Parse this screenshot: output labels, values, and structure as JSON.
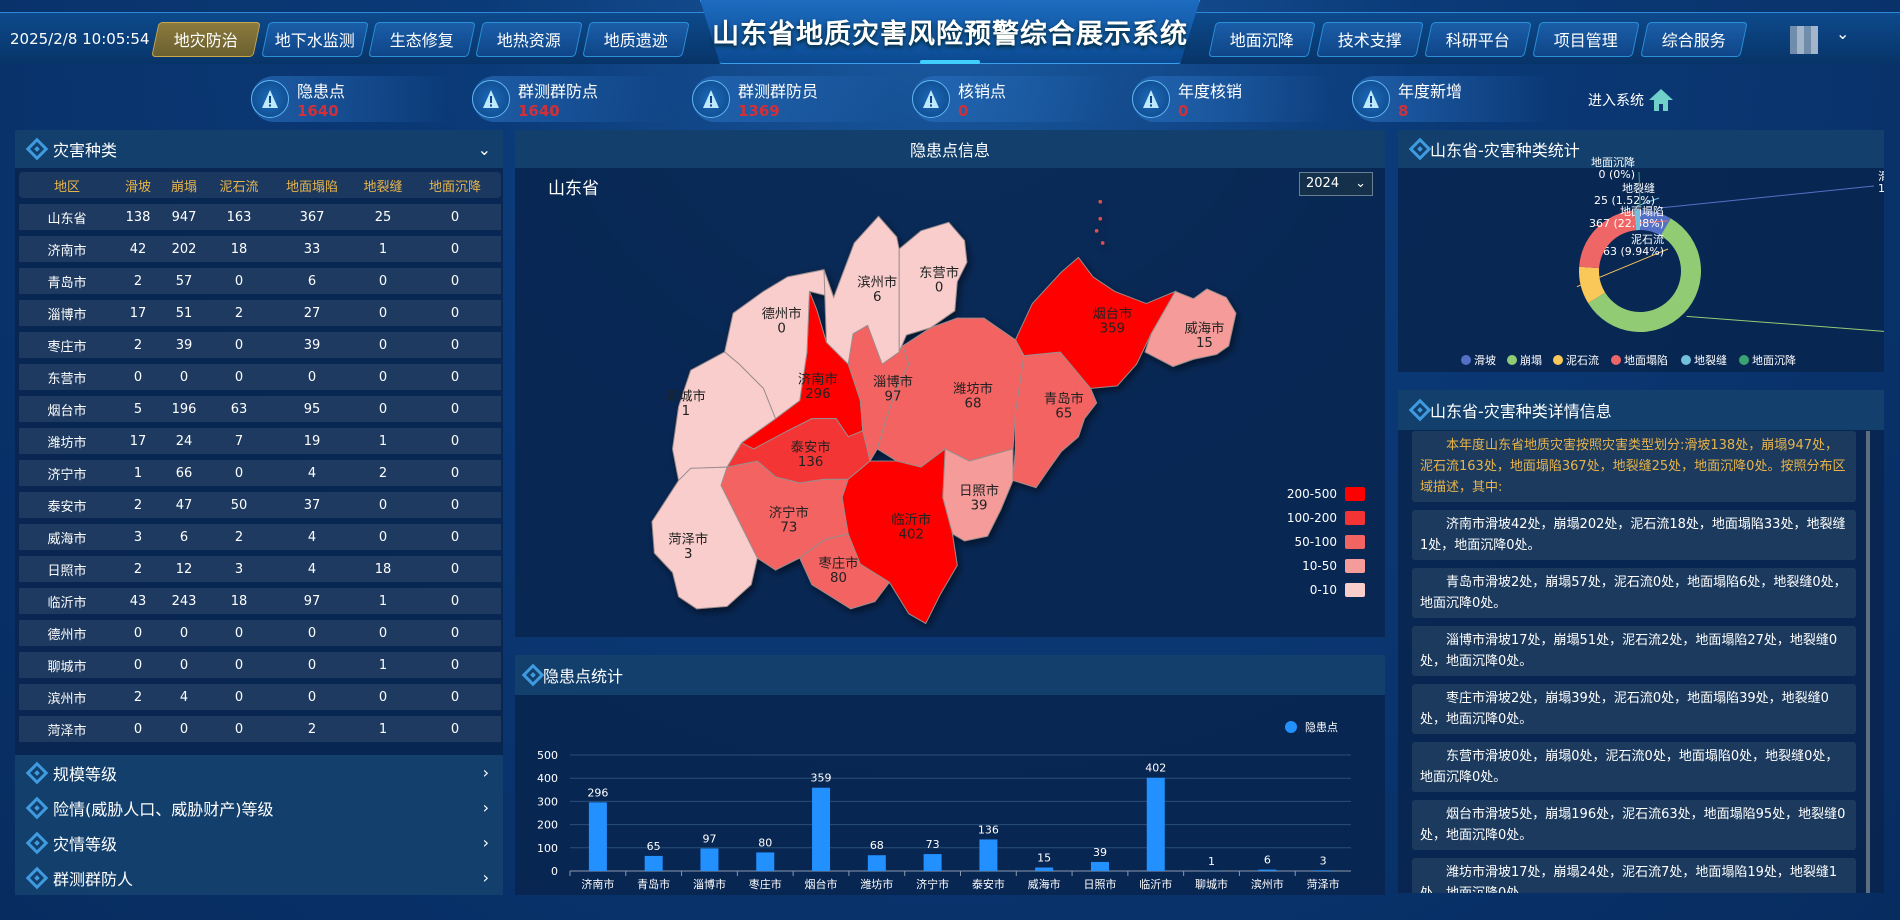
{
  "header": {
    "datetime": "2025/2/8 10:05:54",
    "title": "山东省地质灾害风险预警综合展示系统",
    "left_tabs": [
      "地灾防治",
      "地下水监测",
      "生态修复",
      "地热资源",
      "地质遗迹"
    ],
    "active_tab": "地灾防治",
    "right_tabs": [
      "地面沉降",
      "技术支撑",
      "科研平台",
      "项目管理",
      "综合服务"
    ]
  },
  "stats": [
    {
      "label": "隐患点",
      "value": "1640"
    },
    {
      "label": "群测群防点",
      "value": "1640"
    },
    {
      "label": "群测群防员",
      "value": "1369"
    },
    {
      "label": "核销点",
      "value": "0"
    },
    {
      "label": "年度核销",
      "value": "0"
    },
    {
      "label": "年度新增",
      "value": "8"
    }
  ],
  "enter_system": "进入系统",
  "left": {
    "title": "灾害种类",
    "columns": [
      "地区",
      "滑坡",
      "崩塌",
      "泥石流",
      "地面塌陷",
      "地裂缝",
      "地面沉降"
    ],
    "rows": [
      [
        "山东省",
        "138",
        "947",
        "163",
        "367",
        "25",
        "0"
      ],
      [
        "济南市",
        "42",
        "202",
        "18",
        "33",
        "1",
        "0"
      ],
      [
        "青岛市",
        "2",
        "57",
        "0",
        "6",
        "0",
        "0"
      ],
      [
        "淄博市",
        "17",
        "51",
        "2",
        "27",
        "0",
        "0"
      ],
      [
        "枣庄市",
        "2",
        "39",
        "0",
        "39",
        "0",
        "0"
      ],
      [
        "东营市",
        "0",
        "0",
        "0",
        "0",
        "0",
        "0"
      ],
      [
        "烟台市",
        "5",
        "196",
        "63",
        "95",
        "0",
        "0"
      ],
      [
        "潍坊市",
        "17",
        "24",
        "7",
        "19",
        "1",
        "0"
      ],
      [
        "济宁市",
        "1",
        "66",
        "0",
        "4",
        "2",
        "0"
      ],
      [
        "泰安市",
        "2",
        "47",
        "50",
        "37",
        "0",
        "0"
      ],
      [
        "威海市",
        "3",
        "6",
        "2",
        "4",
        "0",
        "0"
      ],
      [
        "日照市",
        "2",
        "12",
        "3",
        "4",
        "18",
        "0"
      ],
      [
        "临沂市",
        "43",
        "243",
        "18",
        "97",
        "1",
        "0"
      ],
      [
        "德州市",
        "0",
        "0",
        "0",
        "0",
        "0",
        "0"
      ],
      [
        "聊城市",
        "0",
        "0",
        "0",
        "0",
        "1",
        "0"
      ],
      [
        "滨州市",
        "2",
        "4",
        "0",
        "0",
        "0",
        "0"
      ],
      [
        "菏泽市",
        "0",
        "0",
        "0",
        "2",
        "1",
        "0"
      ]
    ],
    "accordion": [
      "规模等级",
      "险情(威胁人口、威胁财产)等级",
      "灾情等级",
      "群测群防人"
    ]
  },
  "map": {
    "title": "隐患点信息",
    "region": "山东省",
    "year": "2024",
    "cities": [
      {
        "name": "济南市",
        "value": 296
      },
      {
        "name": "青岛市",
        "value": 65
      },
      {
        "name": "淄博市",
        "value": 97
      },
      {
        "name": "枣庄市",
        "value": 80
      },
      {
        "name": "东营市",
        "value": 0
      },
      {
        "name": "烟台市",
        "value": 359
      },
      {
        "name": "潍坊市",
        "value": 68
      },
      {
        "name": "济宁市",
        "value": 73
      },
      {
        "name": "泰安市",
        "value": 136
      },
      {
        "name": "威海市",
        "value": 15
      },
      {
        "name": "日照市",
        "value": 39
      },
      {
        "name": "临沂市",
        "value": 402
      },
      {
        "name": "德州市",
        "value": 0
      },
      {
        "name": "聊城市",
        "value": 1
      },
      {
        "name": "滨州市",
        "value": 6
      },
      {
        "name": "菏泽市",
        "value": 3
      }
    ],
    "legend": [
      {
        "label": "200-500",
        "color": "#ff0000"
      },
      {
        "label": "100-200",
        "color": "#f43434"
      },
      {
        "label": "50-100",
        "color": "#f26462"
      },
      {
        "label": "10-50",
        "color": "#f59c9a"
      },
      {
        "label": "0-10",
        "color": "#f8cdcc"
      }
    ]
  },
  "chart_data": [
    {
      "type": "bar",
      "title": "隐患点统计",
      "legend": [
        "隐患点"
      ],
      "legend_position": "top-right",
      "grid": true,
      "categories": [
        "济南市",
        "青岛市",
        "淄博市",
        "枣庄市",
        "烟台市",
        "潍坊市",
        "济宁市",
        "泰安市",
        "威海市",
        "日照市",
        "临沂市",
        "聊城市",
        "滨州市",
        "菏泽市"
      ],
      "series": [
        {
          "name": "隐患点",
          "values": [
            296,
            65,
            97,
            80,
            359,
            68,
            73,
            136,
            15,
            39,
            402,
            1,
            6,
            3
          ],
          "color": "#2390ff"
        }
      ],
      "ylim": [
        0,
        500
      ],
      "yticks": [
        "0",
        "100",
        "200",
        "300",
        "400",
        "500"
      ]
    },
    {
      "type": "pie",
      "title": "山东省-灾害种类统计",
      "legend_position": "bottom",
      "slices": [
        {
          "name": "滑坡",
          "value": 138,
          "label": "138 (8.42%)",
          "color": "#5470c6"
        },
        {
          "name": "崩塌",
          "value": 947,
          "label": "947 (57.74%)",
          "color": "#91cc75"
        },
        {
          "name": "泥石流",
          "value": 163,
          "label": "163 (9.94%)",
          "color": "#fac858"
        },
        {
          "name": "地面塌陷",
          "value": 367,
          "label": "367 (22.38%)",
          "color": "#ee6666"
        },
        {
          "name": "地裂缝",
          "value": 25,
          "label": "25 (1.52%)",
          "color": "#73c0de"
        },
        {
          "name": "地面沉降",
          "value": 0,
          "label": "0 (0%)",
          "color": "#3ba272"
        }
      ]
    }
  ],
  "details": {
    "title": "山东省-灾害种类详情信息",
    "summary": "本年度山东省地质灾害按照灾害类型划分:滑坡138处，崩塌947处，泥石流163处，地面塌陷367处，地裂缝25处，地面沉降0处。按照分布区域描述，其中:",
    "items": [
      "济南市滑坡42处，崩塌202处，泥石流18处，地面塌陷33处，地裂缝1处，地面沉降0处。",
      "青岛市滑坡2处，崩塌57处，泥石流0处，地面塌陷6处，地裂缝0处，地面沉降0处。",
      "淄博市滑坡17处，崩塌51处，泥石流2处，地面塌陷27处，地裂缝0处，地面沉降0处。",
      "枣庄市滑坡2处，崩塌39处，泥石流0处，地面塌陷39处，地裂缝0处，地面沉降0处。",
      "东营市滑坡0处，崩塌0处，泥石流0处，地面塌陷0处，地裂缝0处，地面沉降0处。",
      "烟台市滑坡5处，崩塌196处，泥石流63处，地面塌陷95处，地裂缝0处，地面沉降0处。",
      "潍坊市滑坡17处，崩塌24处，泥石流7处，地面塌陷19处，地裂缝1处，地面沉降0处。"
    ],
    "summary_color": "#e8b44a"
  }
}
